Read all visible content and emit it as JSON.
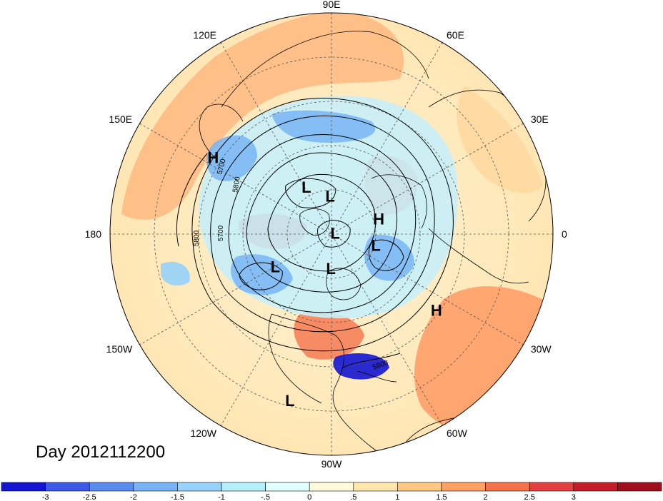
{
  "title": "Day 2012112200",
  "longitude_labels": [
    {
      "text": "90E",
      "deg": 90
    },
    {
      "text": "60E",
      "deg": 60
    },
    {
      "text": "30E",
      "deg": 30
    },
    {
      "text": "0",
      "deg": 0
    },
    {
      "text": "30W",
      "deg": -30
    },
    {
      "text": "60W",
      "deg": -60
    },
    {
      "text": "90W",
      "deg": -90
    },
    {
      "text": "120W",
      "deg": -120
    },
    {
      "text": "150W",
      "deg": -150
    },
    {
      "text": "180",
      "deg": 180
    },
    {
      "text": "150E",
      "deg": 150
    },
    {
      "text": "120E",
      "deg": 120
    }
  ],
  "pressure_centers": [
    {
      "type": "H",
      "lon": 147,
      "colat": 37
    },
    {
      "type": "H",
      "lon": 18,
      "colat": 13
    },
    {
      "type": "H",
      "lon": -36,
      "colat": 34
    },
    {
      "type": "L",
      "lon": 118,
      "colat": 14
    },
    {
      "type": "L",
      "lon": 92,
      "colat": 10
    },
    {
      "type": "L",
      "lon": 15,
      "colat": 1
    },
    {
      "type": "L",
      "lon": -14,
      "colat": 12
    },
    {
      "type": "L",
      "lon": -150,
      "colat": 17
    },
    {
      "type": "L",
      "lon": -91,
      "colat": 9
    },
    {
      "type": "L",
      "lon": -104,
      "colat": 45
    }
  ],
  "contour_labels": [
    "5700",
    "5800",
    "5700",
    "5800",
    "5800"
  ],
  "colorbar": {
    "colors": [
      "#1414d2",
      "#3c5ae6",
      "#5a8cf0",
      "#78b4f5",
      "#96d2fa",
      "#b4f0fa",
      "#e1ffff",
      "#fffadc",
      "#ffe6aa",
      "#ffc882",
      "#ffa064",
      "#f5734b",
      "#e14141",
      "#c31e28",
      "#a00f1e"
    ],
    "labels": [
      "-3",
      "-2.5",
      "-2",
      "-1.5",
      "-1",
      "-.5",
      "0",
      ".5",
      "1",
      "1.5",
      "2",
      "2.5",
      "3"
    ]
  }
}
